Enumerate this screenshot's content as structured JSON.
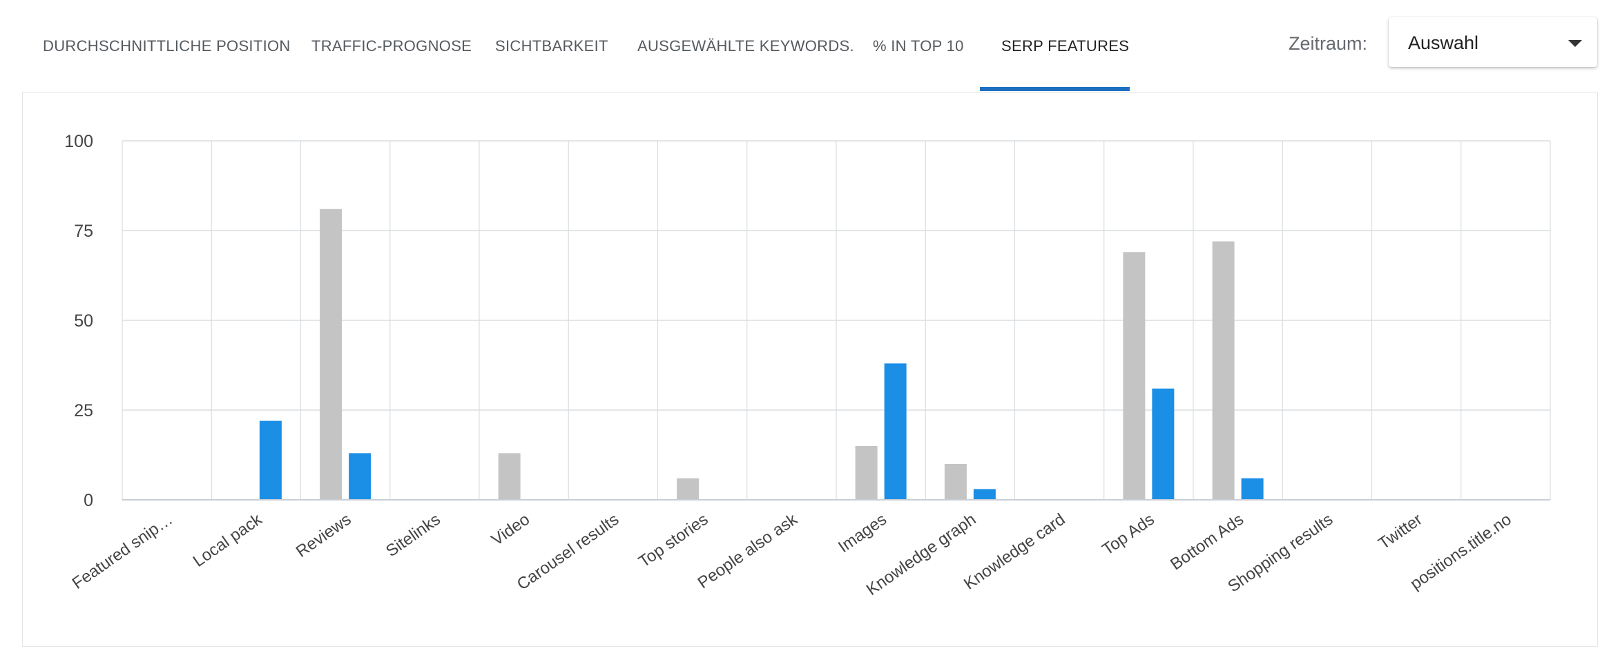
{
  "tabs": [
    {
      "label": "DURCHSCHNITTLICHE POSITION",
      "active": false
    },
    {
      "label": "TRAFFIC-PROGNOSE",
      "active": false
    },
    {
      "label": "SICHTBARKEIT",
      "active": false
    },
    {
      "label": "AUSGEWÄHLTE KEYWORDS.",
      "active": false
    },
    {
      "label": "% IN TOP 10",
      "active": false
    },
    {
      "label": "SERP FEATURES",
      "active": true
    }
  ],
  "period": {
    "label": "Zeitraum:",
    "value": "Auswahl"
  },
  "colors": {
    "accent": "#1e6fc2",
    "series_gray": "#c4c4c4",
    "series_blue": "#1b8ee6",
    "grid": "#dadde0"
  },
  "chart_data": {
    "type": "bar",
    "categories": [
      "Featured snip…",
      "Local pack",
      "Reviews",
      "Sitelinks",
      "Video",
      "Carousel results",
      "Top stories",
      "People also ask",
      "Images",
      "Knowledge graph",
      "Knowledge card",
      "Top Ads",
      "Bottom Ads",
      "Shopping results",
      "Twitter",
      "positions.title.no"
    ],
    "series": [
      {
        "values": [
          0,
          0,
          81,
          0,
          13,
          0,
          6,
          0,
          15,
          10,
          0,
          69,
          72,
          0,
          0,
          0
        ],
        "color": "#c4c4c4"
      },
      {
        "values": [
          0,
          22,
          13,
          0,
          0,
          0,
          0,
          0,
          38,
          3,
          0,
          31,
          6,
          0,
          0,
          0
        ],
        "color": "#1b8ee6"
      }
    ],
    "yticks": [
      "0",
      "25",
      "50",
      "75",
      "100"
    ],
    "ylim": [
      0,
      100
    ],
    "grid": true,
    "legend": "none"
  }
}
